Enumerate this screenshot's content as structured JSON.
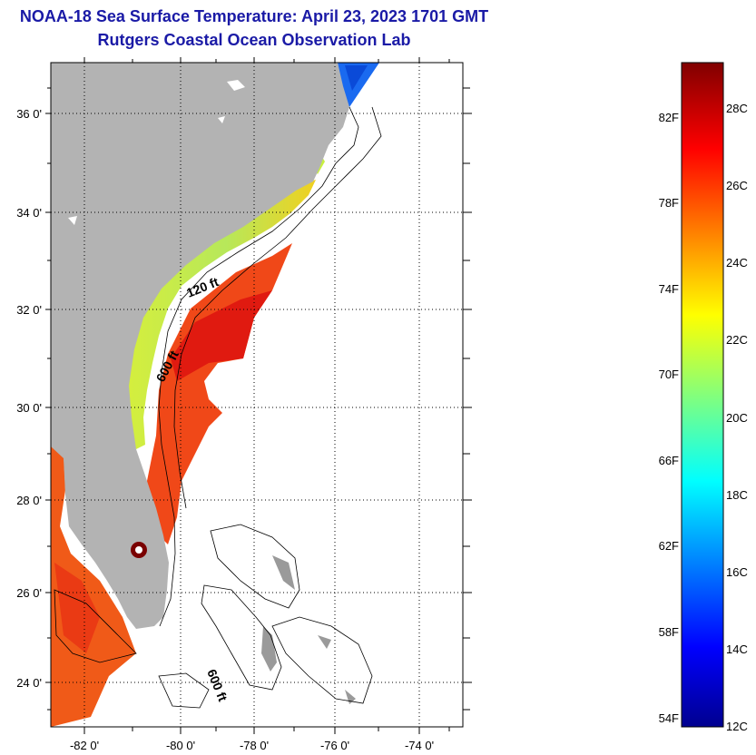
{
  "title": {
    "line1": "NOAA-18 Sea Surface Temperature:  April 23, 2023 1701 GMT",
    "line2": "Rutgers Coastal Ocean Observation Lab"
  },
  "map": {
    "lat_labels": [
      "36 0'",
      "34 0'",
      "32 0'",
      "30 0'",
      "28 0'",
      "26 0'",
      "24 0'"
    ],
    "lon_labels": [
      "-82 0'",
      "-80 0'",
      "-78 0'",
      "-76 0'",
      "-74 0'"
    ],
    "contour_labels": [
      "120 ft",
      "600 ft",
      "600 ft"
    ],
    "colors": {
      "land": "#b3b3b3",
      "ocean_nodata": "#ffffff"
    }
  },
  "colorbar": {
    "fahrenheit_labels": [
      "82F",
      "78F",
      "74F",
      "70F",
      "66F",
      "62F",
      "58F",
      "54F"
    ],
    "celsius_labels": [
      "28C",
      "26C",
      "24C",
      "22C",
      "20C",
      "18C",
      "16C",
      "14C",
      "12C"
    ],
    "colors": [
      "#00008f",
      "#0000ff",
      "#00ffff",
      "#ffff00",
      "#ff0000",
      "#800000"
    ]
  }
}
